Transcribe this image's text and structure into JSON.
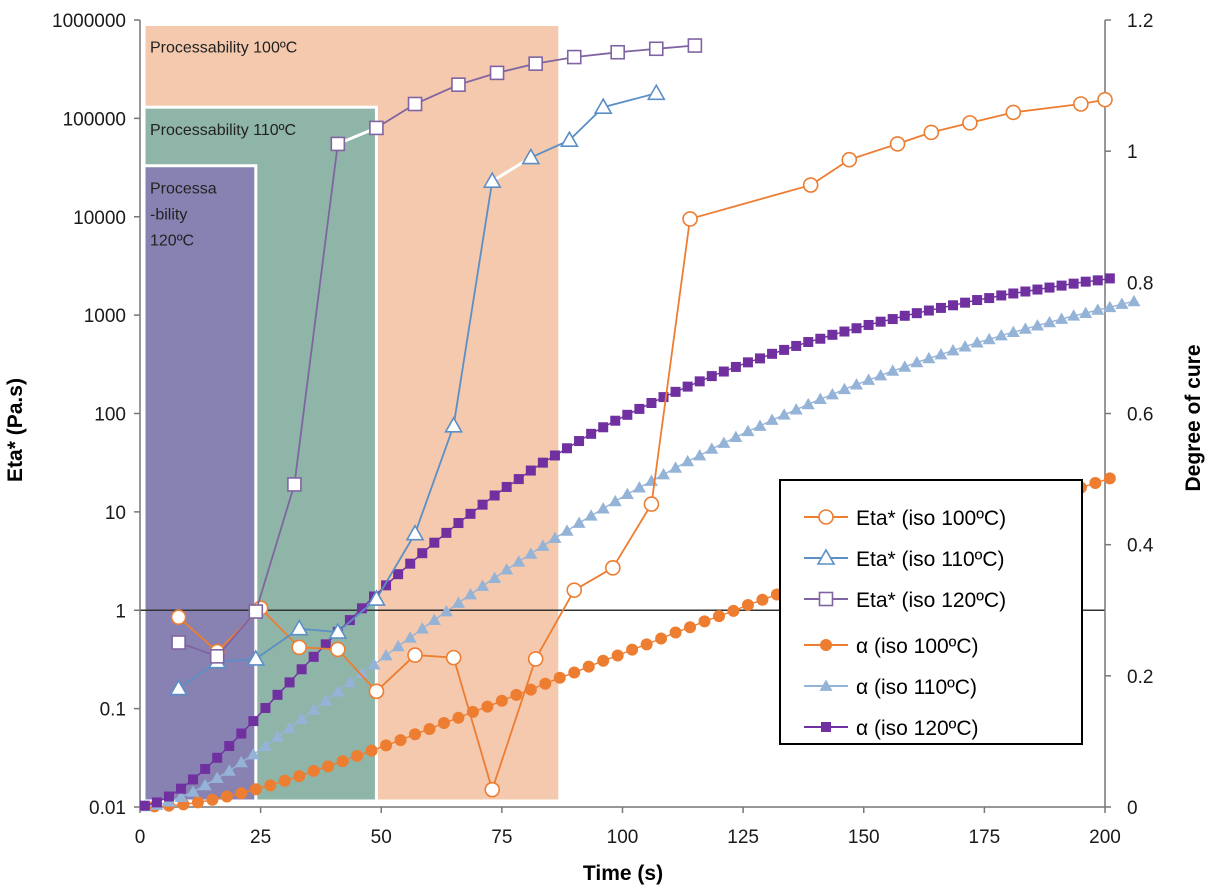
{
  "chart_data": {
    "type": "scatter",
    "xlabel": "Time (s)",
    "ylabel_left": "Eta* (Pa.s)",
    "ylabel_right": "Degree of cure",
    "xlim": [
      0,
      200
    ],
    "x_ticks": [
      "0",
      "25",
      "50",
      "75",
      "100",
      "125",
      "150",
      "175",
      "200"
    ],
    "y_left_scale": "log",
    "y_left_lim": [
      0.01,
      1000000
    ],
    "y_left_ticks": [
      "0.01",
      "0.1",
      "1",
      "10",
      "100",
      "1000",
      "10000",
      "100000",
      "1000000"
    ],
    "y_right_lim": [
      0,
      1.2
    ],
    "y_right_ticks": [
      "0",
      "0.2",
      "0.4",
      "0.6",
      "0.8",
      "1",
      "1.2"
    ],
    "reference_line_y": 1,
    "legend_position": "center-right",
    "zones": [
      {
        "label_lines": [
          "Processability 100ºC"
        ],
        "x0": 0,
        "x1": 87,
        "y_top": 900000,
        "color": "#f4c9ad"
      },
      {
        "label_lines": [
          "Processability 110ºC"
        ],
        "x0": 0,
        "x1": 49,
        "y_top": 130000,
        "color": "#8fb5a8"
      },
      {
        "label_lines": [
          "Processa",
          "-bility",
          "120ºC"
        ],
        "x0": 0,
        "x1": 24,
        "y_top": 33000,
        "color": "#8882b2"
      }
    ],
    "series": [
      {
        "name": "Eta* (iso 100ºC)",
        "axis": "left",
        "style": "line-open-circle",
        "color": "#ed7d31",
        "x": [
          8,
          16,
          25,
          33,
          41,
          49,
          57,
          65,
          73,
          82,
          90,
          98,
          106,
          114,
          139,
          147,
          157,
          164,
          172,
          181,
          195,
          200
        ],
        "y": [
          0.85,
          0.38,
          1.05,
          0.42,
          0.4,
          0.15,
          0.35,
          0.33,
          0.015,
          0.32,
          1.6,
          2.7,
          12,
          9500,
          21000,
          38000,
          55000,
          72000,
          90000,
          115000,
          140000,
          155000
        ]
      },
      {
        "name": "Eta* (iso 110ºC)",
        "axis": "left",
        "style": "line-open-triangle",
        "color": "#5b8fc6",
        "x": [
          8,
          16,
          24,
          33,
          41,
          49,
          57,
          65,
          73,
          81,
          89,
          96,
          107
        ],
        "y": [
          0.16,
          0.3,
          0.32,
          0.65,
          0.6,
          1.3,
          6,
          75,
          23000,
          40000,
          60000,
          130000,
          180000
        ],
        "gap_from_index": 9
      },
      {
        "name": "Eta* (iso 120ºC)",
        "axis": "left",
        "style": "line-open-square",
        "color": "#8064a2",
        "x": [
          8,
          16,
          24,
          32,
          41,
          49,
          57,
          66,
          74,
          82,
          90,
          99,
          107,
          115
        ],
        "y": [
          0.47,
          0.34,
          0.97,
          19,
          55000,
          80000,
          140000,
          220000,
          290000,
          360000,
          420000,
          470000,
          510000,
          550000
        ],
        "gap_from_index": 5
      },
      {
        "name": "α (iso 100ºC)",
        "axis": "right",
        "style": "line-filled-circle",
        "color": "#ed7d31",
        "x_start": 3,
        "x_step": 3,
        "values": [
          0.001,
          0.002,
          0.004,
          0.007,
          0.011,
          0.016,
          0.021,
          0.027,
          0.033,
          0.04,
          0.047,
          0.055,
          0.062,
          0.07,
          0.078,
          0.086,
          0.094,
          0.102,
          0.111,
          0.119,
          0.128,
          0.136,
          0.145,
          0.153,
          0.162,
          0.171,
          0.179,
          0.188,
          0.197,
          0.205,
          0.214,
          0.223,
          0.231,
          0.24,
          0.248,
          0.257,
          0.266,
          0.274,
          0.283,
          0.291,
          0.299,
          0.308,
          0.316,
          0.324,
          0.333,
          0.341,
          0.349,
          0.357,
          0.365,
          0.373,
          0.381,
          0.389,
          0.397,
          0.405,
          0.413,
          0.42,
          0.428,
          0.436,
          0.443,
          0.451,
          0.458,
          0.465,
          0.473,
          0.48,
          0.487,
          0.494,
          0.501
        ]
      },
      {
        "name": "α (iso 110ºC)",
        "axis": "right",
        "style": "line-filled-triangle",
        "color": "#95b3d7",
        "x_start": 1,
        "x_step": 2.5,
        "values": [
          0.001,
          0.003,
          0.008,
          0.015,
          0.023,
          0.033,
          0.044,
          0.055,
          0.068,
          0.08,
          0.093,
          0.107,
          0.12,
          0.134,
          0.148,
          0.162,
          0.176,
          0.19,
          0.204,
          0.217,
          0.231,
          0.245,
          0.258,
          0.272,
          0.285,
          0.298,
          0.311,
          0.324,
          0.337,
          0.349,
          0.362,
          0.374,
          0.386,
          0.398,
          0.41,
          0.421,
          0.433,
          0.444,
          0.455,
          0.466,
          0.477,
          0.487,
          0.497,
          0.507,
          0.517,
          0.527,
          0.536,
          0.546,
          0.555,
          0.564,
          0.573,
          0.581,
          0.59,
          0.598,
          0.606,
          0.614,
          0.622,
          0.629,
          0.637,
          0.644,
          0.651,
          0.658,
          0.665,
          0.671,
          0.678,
          0.684,
          0.69,
          0.696,
          0.702,
          0.708,
          0.713,
          0.719,
          0.724,
          0.729,
          0.734,
          0.739,
          0.744,
          0.749,
          0.753,
          0.758,
          0.762,
          0.767,
          0.771
        ]
      },
      {
        "name": "α (iso 120ºC)",
        "axis": "right",
        "style": "line-filled-square",
        "color": "#7030a0",
        "x_start": 1,
        "x_step": 2.5,
        "values": [
          0.002,
          0.007,
          0.016,
          0.028,
          0.042,
          0.058,
          0.075,
          0.093,
          0.112,
          0.131,
          0.151,
          0.171,
          0.19,
          0.21,
          0.229,
          0.248,
          0.267,
          0.285,
          0.303,
          0.321,
          0.338,
          0.355,
          0.371,
          0.387,
          0.403,
          0.418,
          0.433,
          0.447,
          0.461,
          0.475,
          0.488,
          0.5,
          0.513,
          0.525,
          0.536,
          0.547,
          0.558,
          0.569,
          0.579,
          0.589,
          0.598,
          0.607,
          0.616,
          0.625,
          0.633,
          0.641,
          0.649,
          0.657,
          0.664,
          0.671,
          0.678,
          0.684,
          0.691,
          0.697,
          0.703,
          0.709,
          0.714,
          0.72,
          0.725,
          0.73,
          0.735,
          0.74,
          0.744,
          0.749,
          0.753,
          0.757,
          0.761,
          0.765,
          0.769,
          0.773,
          0.776,
          0.78,
          0.783,
          0.786,
          0.789,
          0.792,
          0.795,
          0.798,
          0.801,
          0.803,
          0.806
        ]
      }
    ]
  }
}
